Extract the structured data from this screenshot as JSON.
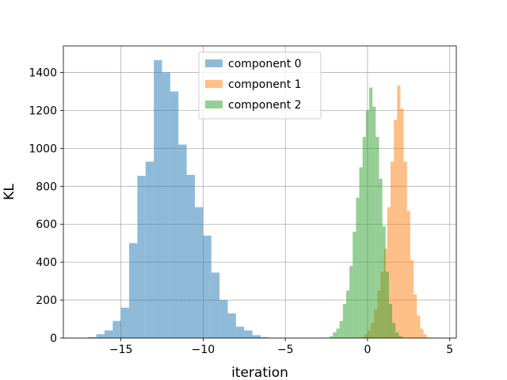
{
  "chart_data": {
    "type": "bar",
    "subtype": "histogram",
    "title": "",
    "xlabel": "iteration",
    "ylabel": "KL",
    "xlim": [
      -18.5,
      5.4
    ],
    "ylim": [
      0,
      1540
    ],
    "xticks": [
      -15,
      -10,
      -5,
      0,
      5
    ],
    "xtick_labels": [
      "−15",
      "−10",
      "−5",
      "0",
      "5"
    ],
    "yticks": [
      0,
      200,
      400,
      600,
      800,
      1000,
      1200,
      1400
    ],
    "ytick_labels": [
      "0",
      "200",
      "400",
      "600",
      "800",
      "1000",
      "1200",
      "1400"
    ],
    "grid": true,
    "legend_position": "upper-center",
    "alpha": 0.5,
    "series": [
      {
        "name": "component 0",
        "color": "#1f77b4",
        "bin_start": -17.0,
        "bin_width": 0.5,
        "counts": [
          5,
          20,
          40,
          90,
          160,
          500,
          855,
          930,
          1465,
          1400,
          1300,
          1020,
          860,
          690,
          540,
          345,
          200,
          130,
          60,
          40,
          15,
          5
        ]
      },
      {
        "name": "component 1",
        "color": "#ff7f0e",
        "bin_start": -0.4,
        "bin_width": 0.2,
        "counts": [
          5,
          20,
          40,
          80,
          150,
          250,
          350,
          470,
          690,
          930,
          1150,
          1330,
          1210,
          930,
          670,
          410,
          230,
          120,
          50,
          20,
          5,
          3
        ]
      },
      {
        "name": "component 2",
        "color": "#2ca02c",
        "bin_start": -2.5,
        "bin_width": 0.2,
        "counts": [
          3,
          10,
          30,
          50,
          90,
          180,
          250,
          380,
          560,
          740,
          900,
          1060,
          1200,
          1320,
          1220,
          1060,
          840,
          590,
          350,
          180,
          80,
          30,
          10,
          3
        ]
      }
    ]
  }
}
